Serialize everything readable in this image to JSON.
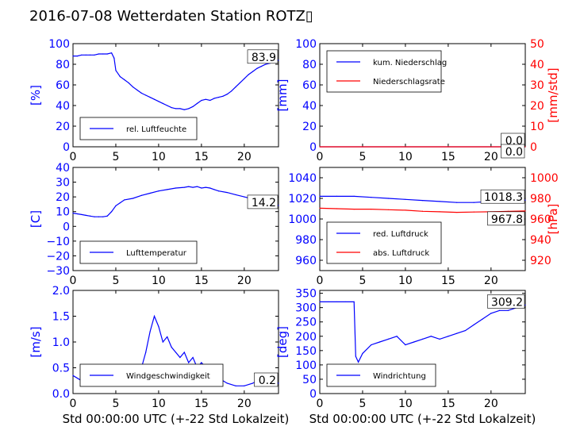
{
  "title": "2016-07-08 Wetterdaten Station ROTZ▯",
  "colors": {
    "left": "#0000ff",
    "right": "#ff0000",
    "wind_light": "#8a8aff",
    "axis": "#000000"
  },
  "chart_data": [
    {
      "type": "line",
      "ylabel": "[%]",
      "xlabel": "",
      "xlim": [
        0,
        24
      ],
      "ylim": [
        0,
        100
      ],
      "xticks": [
        "0",
        "5",
        "10",
        "15",
        "20"
      ],
      "yticks": [
        "0",
        "20",
        "40",
        "60",
        "80",
        "100"
      ],
      "legend": [
        "rel. Luftfeuchte"
      ],
      "legend_loc": "lower-left",
      "last_value": "83.9",
      "series": [
        {
          "name": "rel. Luftfeuchte",
          "x": [
            0,
            0.5,
            1,
            1.5,
            2,
            2.5,
            3,
            3.5,
            4,
            4.5,
            4.8,
            5,
            5.5,
            6,
            6.5,
            7,
            7.5,
            8,
            8.5,
            9,
            9.5,
            10,
            10.5,
            11,
            11.5,
            12,
            12.5,
            13,
            13.5,
            14,
            14.5,
            15,
            15.5,
            16,
            16.5,
            17,
            17.5,
            18,
            18.5,
            19,
            19.5,
            20,
            20.5,
            21,
            21.5,
            22,
            22.5,
            23,
            23.5,
            24
          ],
          "values": [
            88,
            88,
            89,
            89,
            89,
            89,
            90,
            90,
            90,
            91,
            86,
            74,
            68,
            65,
            62,
            58,
            55,
            52,
            50,
            48,
            46,
            44,
            42,
            40,
            38,
            37,
            37,
            36,
            37,
            39,
            42,
            45,
            46,
            45,
            47,
            48,
            49,
            51,
            54,
            58,
            62,
            66,
            70,
            73,
            76,
            78,
            80,
            81,
            82,
            84
          ]
        }
      ]
    },
    {
      "type": "line",
      "ylabel": "[mm]",
      "ylabel_right": "[mm/std]",
      "xlabel": "",
      "xlim": [
        0,
        24
      ],
      "ylim": [
        0,
        100
      ],
      "ylim_right": [
        0,
        50
      ],
      "xticks": [
        "0",
        "5",
        "10",
        "15",
        "20"
      ],
      "yticks": [
        "0",
        "20",
        "40",
        "60",
        "80",
        "100"
      ],
      "yticks_right": [
        "0",
        "10",
        "20",
        "30",
        "40",
        "50"
      ],
      "legend": [
        "kum. Niederschlag",
        "Niederschlagsrate"
      ],
      "legend_loc": "upper-left",
      "last_value": "0.0",
      "last_value_right": "0.0",
      "series": [
        {
          "name": "kum. Niederschlag",
          "axis": "left",
          "x": [
            0,
            24
          ],
          "values": [
            0,
            0
          ]
        },
        {
          "name": "Niederschlagsrate",
          "axis": "right",
          "x": [
            0,
            24
          ],
          "values": [
            0,
            0
          ]
        }
      ]
    },
    {
      "type": "line",
      "ylabel": "[C]",
      "xlabel": "",
      "xlim": [
        0,
        24
      ],
      "ylim": [
        -30,
        40
      ],
      "xticks": [
        "0",
        "5",
        "10",
        "15",
        "20"
      ],
      "yticks": [
        "−30",
        "−20",
        "−10",
        "0",
        "10",
        "20",
        "30",
        "40"
      ],
      "legend": [
        "Lufttemperatur"
      ],
      "legend_loc": "lower-left",
      "last_value": "14.2",
      "series": [
        {
          "name": "Lufttemperatur",
          "x": [
            0,
            0.5,
            1,
            1.5,
            2,
            2.5,
            3,
            3.5,
            4,
            4.5,
            5,
            5.5,
            6,
            7,
            8,
            9,
            10,
            11,
            12,
            13,
            13.5,
            14,
            14.5,
            15,
            15.5,
            16,
            16.5,
            17,
            18,
            19,
            20,
            21,
            22,
            23,
            24
          ],
          "values": [
            9,
            8.5,
            8,
            7.5,
            7,
            6.5,
            6.5,
            6.5,
            7,
            10,
            14,
            16,
            18,
            19,
            21,
            22.5,
            24,
            25,
            26,
            26.5,
            27,
            26.5,
            27,
            26,
            26.5,
            26,
            25,
            24,
            23,
            21.5,
            20,
            18.5,
            17,
            15.5,
            14.2
          ]
        }
      ]
    },
    {
      "type": "line",
      "ylabel": "",
      "ylabel_right": "[hPa]",
      "xlabel": "",
      "xlim": [
        0,
        24
      ],
      "ylim": [
        950,
        1050
      ],
      "ylim_right": [
        910,
        1010
      ],
      "xticks": [
        "0",
        "5",
        "10",
        "15",
        "20"
      ],
      "yticks": [
        "960",
        "980",
        "1000",
        "1020",
        "1040"
      ],
      "yticks_right": [
        "920",
        "940",
        "960",
        "980",
        "1000"
      ],
      "legend": [
        "red. Luftdruck",
        "abs. Luftdruck"
      ],
      "legend_loc": "lower-left",
      "last_value": "1018.3",
      "last_value_right": "967.8",
      "series": [
        {
          "name": "red. Luftdruck",
          "axis": "left",
          "x": [
            0,
            2,
            4,
            6,
            8,
            10,
            12,
            14,
            16,
            18,
            20,
            22,
            24
          ],
          "values": [
            1022,
            1022,
            1022,
            1021,
            1020,
            1019,
            1018,
            1017,
            1016,
            1016,
            1017,
            1018,
            1018.3
          ]
        },
        {
          "name": "abs. Luftdruck",
          "axis": "right",
          "x": [
            0,
            2,
            4,
            6,
            8,
            10,
            12,
            14,
            16,
            18,
            20,
            22,
            24
          ],
          "values": [
            970.5,
            970,
            969.5,
            969.5,
            969,
            968.5,
            967.5,
            967,
            966.5,
            966.8,
            967,
            967.5,
            967.8
          ]
        }
      ]
    },
    {
      "type": "line",
      "ylabel": "[m/s]",
      "xlabel": "Std 00:00:00 UTC (+-22 Std Lokalzeit)",
      "xlim": [
        0,
        24
      ],
      "ylim": [
        0,
        2
      ],
      "xticks": [
        "0",
        "5",
        "10",
        "15",
        "20"
      ],
      "yticks": [
        "0.0",
        "0.5",
        "1.0",
        "1.5",
        "2.0"
      ],
      "legend": [
        "Windgeschwindigkeit"
      ],
      "legend_loc": "lower-left",
      "last_value": "0.2",
      "series": [
        {
          "name": "Windgeschwindigkeit",
          "x": [
            0,
            1,
            2,
            3,
            4,
            5,
            6,
            7,
            8,
            8.5,
            9,
            9.5,
            10,
            10.5,
            11,
            11.5,
            12,
            12.5,
            13,
            13.5,
            14,
            14.5,
            15,
            15.5,
            16,
            17,
            18,
            19,
            20,
            21,
            22,
            23,
            24
          ],
          "values": [
            0.35,
            0.25,
            0.2,
            0.2,
            0.2,
            0.15,
            0.15,
            0.25,
            0.5,
            0.8,
            1.2,
            1.5,
            1.3,
            1.0,
            1.1,
            0.9,
            0.8,
            0.7,
            0.8,
            0.6,
            0.7,
            0.5,
            0.6,
            0.5,
            0.45,
            0.3,
            0.2,
            0.15,
            0.15,
            0.2,
            0.3,
            0.25,
            0.2
          ]
        }
      ]
    },
    {
      "type": "line",
      "ylabel": "[deg]",
      "xlabel": "Std 00:00:00 UTC (+-22 Std Lokalzeit)",
      "xlim": [
        0,
        24
      ],
      "ylim": [
        0,
        360
      ],
      "xticks": [
        "0",
        "5",
        "10",
        "15",
        "20"
      ],
      "yticks": [
        "0",
        "50",
        "100",
        "150",
        "200",
        "250",
        "300",
        "350"
      ],
      "legend": [
        "Windrichtung"
      ],
      "legend_loc": "lower-left",
      "last_value": "309.2",
      "series": [
        {
          "name": "Windrichtung",
          "x": [
            0,
            1,
            2,
            3,
            4,
            4.2,
            4.5,
            5,
            6,
            7,
            8,
            9,
            10,
            11,
            12,
            13,
            14,
            15,
            16,
            17,
            18,
            19,
            20,
            21,
            22,
            23,
            24
          ],
          "values": [
            320,
            320,
            320,
            320,
            320,
            130,
            110,
            140,
            170,
            180,
            190,
            200,
            170,
            180,
            190,
            200,
            190,
            200,
            210,
            220,
            240,
            260,
            280,
            290,
            290,
            300,
            309
          ]
        }
      ]
    }
  ]
}
